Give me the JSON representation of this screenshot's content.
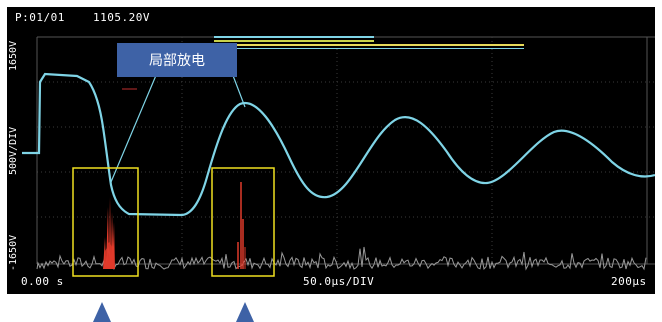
{
  "header": {
    "page_indicator": "P:01/01",
    "level_readout": "1105.20V"
  },
  "y_axis": {
    "top": "1650V",
    "scale": "500V/DIV",
    "bottom": "-1650V"
  },
  "x_axis": {
    "start": "0.00 s",
    "scale": "50.0µs/DIV",
    "end": "200µs"
  },
  "callout": {
    "label": "局部放电"
  },
  "colors": {
    "waveform": "#7fd4e6",
    "discharge": "#e03a2a",
    "highlight_box": "#f0e020",
    "callout": "#3e62a6"
  },
  "icons": [
    "arrow-up-icon",
    "arrow-up-icon"
  ]
}
